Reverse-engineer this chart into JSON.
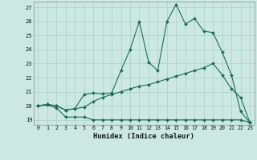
{
  "xlabel": "Humidex (Indice chaleur)",
  "xlim": [
    -0.5,
    23.5
  ],
  "ylim": [
    18.65,
    27.4
  ],
  "yticks": [
    19,
    20,
    21,
    22,
    23,
    24,
    25,
    26,
    27
  ],
  "xticks": [
    0,
    1,
    2,
    3,
    4,
    5,
    6,
    7,
    8,
    9,
    10,
    11,
    12,
    13,
    14,
    15,
    16,
    17,
    18,
    19,
    20,
    21,
    22,
    23
  ],
  "bg_color": "#cce9e1",
  "grid_color": "#aacfc8",
  "line_color": "#1a6b5a",
  "line1_x": [
    0,
    1,
    2,
    3,
    4,
    5,
    6,
    7,
    8,
    9,
    10,
    11,
    12,
    13,
    14,
    15,
    16,
    17,
    18,
    19,
    20,
    21,
    22,
    23
  ],
  "line1_y": [
    20.0,
    20.05,
    19.85,
    19.2,
    19.2,
    19.2,
    19.0,
    19.0,
    19.0,
    19.0,
    19.0,
    19.0,
    19.0,
    19.0,
    19.0,
    19.0,
    19.0,
    19.0,
    19.0,
    19.0,
    19.0,
    19.0,
    19.0,
    18.8
  ],
  "line2_x": [
    0,
    1,
    2,
    3,
    4,
    5,
    6,
    7,
    8,
    9,
    10,
    11,
    12,
    13,
    14,
    15,
    16,
    17,
    18,
    19,
    20,
    21,
    22,
    23
  ],
  "line2_y": [
    20.0,
    20.1,
    20.0,
    19.7,
    19.8,
    19.9,
    20.3,
    20.6,
    20.8,
    21.0,
    21.2,
    21.4,
    21.5,
    21.7,
    21.9,
    22.1,
    22.3,
    22.5,
    22.7,
    23.0,
    22.2,
    21.2,
    20.6,
    18.8
  ],
  "line3_x": [
    0,
    1,
    2,
    3,
    4,
    5,
    6,
    7,
    8,
    9,
    10,
    11,
    12,
    13,
    14,
    15,
    16,
    17,
    18,
    19,
    20,
    21,
    22,
    23
  ],
  "line3_y": [
    20.0,
    20.1,
    20.0,
    19.7,
    19.8,
    20.8,
    20.9,
    20.85,
    20.9,
    22.5,
    24.0,
    26.0,
    23.1,
    22.5,
    26.0,
    27.2,
    25.8,
    26.2,
    25.3,
    25.2,
    23.8,
    22.2,
    19.6,
    18.8
  ]
}
